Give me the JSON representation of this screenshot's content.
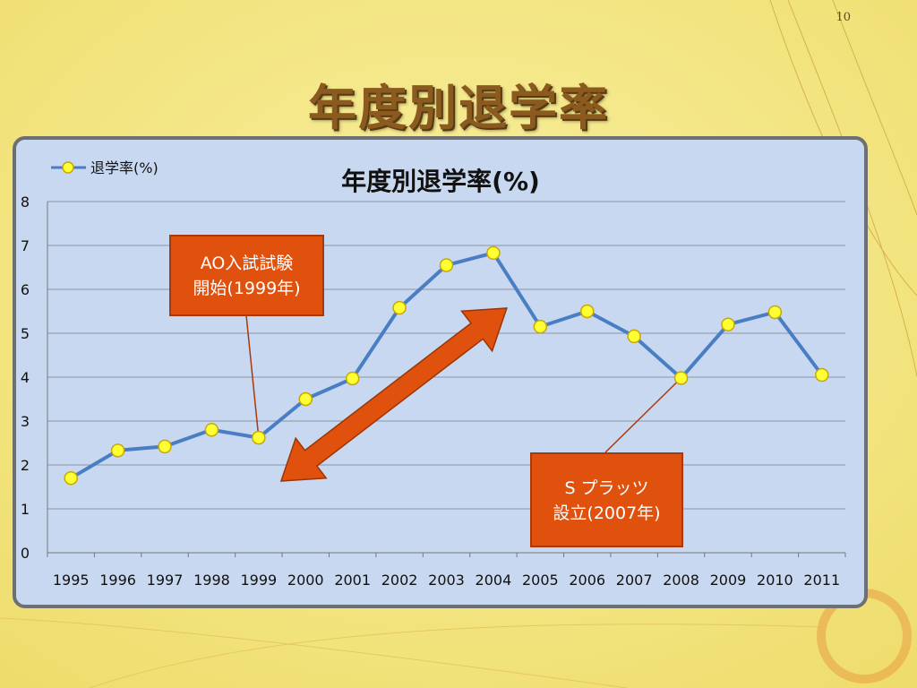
{
  "page_number": "10",
  "slide_title": "年度別退学率",
  "colors": {
    "background": "#f6e98a",
    "plot_bg": "#c8d8f0",
    "line": "#4a7ec4",
    "marker_fill": "#ffff33",
    "marker_edge": "#c8a800",
    "callout": "#e0510e",
    "arrow": "#e0510e"
  },
  "chart_data": {
    "type": "line",
    "title": "年度別退学率(%)",
    "categories": [
      "1995",
      "1996",
      "1997",
      "1998",
      "1999",
      "2000",
      "2001",
      "2002",
      "2003",
      "2004",
      "2005",
      "2006",
      "2007",
      "2008",
      "2009",
      "2010",
      "2011"
    ],
    "series": [
      {
        "name": "退学率(%)",
        "values": [
          1.7,
          2.33,
          2.42,
          2.8,
          2.62,
          3.5,
          3.97,
          5.58,
          6.55,
          6.83,
          5.15,
          5.5,
          4.93,
          3.98,
          5.2,
          5.48,
          4.05
        ]
      }
    ],
    "ylim": [
      0,
      8
    ],
    "yticks": [
      "0",
      "1",
      "2",
      "3",
      "4",
      "5",
      "6",
      "7",
      "8"
    ],
    "grid": true,
    "legend": "top-left",
    "annotations": [
      {
        "id": "ao",
        "lines": [
          "AO入試試験",
          "開始(1999年)"
        ],
        "target_category": "1999"
      },
      {
        "id": "sp",
        "lines": [
          "S プラッツ",
          "設立(2007年)"
        ],
        "target_category": "2008"
      }
    ],
    "arrow": {
      "type": "double",
      "from_category": "1999",
      "to_category": "2004"
    }
  }
}
